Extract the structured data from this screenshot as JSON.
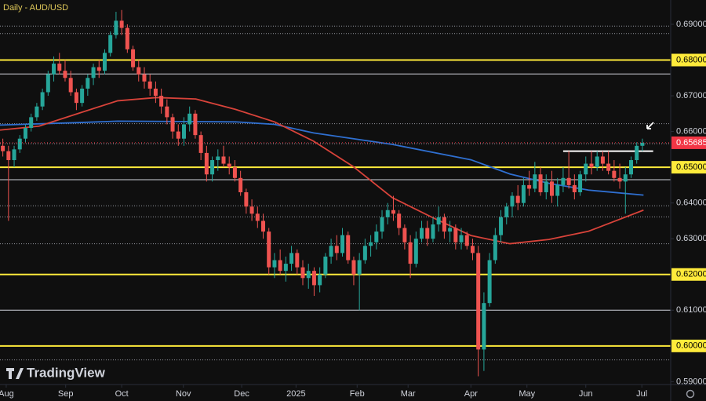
{
  "chart_data": {
    "type": "candlestick",
    "title": "Daily - AUD/USD",
    "logo": "TradingView",
    "xlim": [
      0,
      118.5
    ],
    "xticks": [
      {
        "value": 1.1,
        "label": "Aug"
      },
      {
        "value": 11.6,
        "label": "Sep"
      },
      {
        "value": 21.5,
        "label": "Oct"
      },
      {
        "value": 32.4,
        "label": "Nov"
      },
      {
        "value": 42.7,
        "label": "Dec"
      },
      {
        "value": 52.3,
        "label": "2025"
      },
      {
        "value": 63.1,
        "label": "Feb"
      },
      {
        "value": 72.1,
        "label": "Mar"
      },
      {
        "value": 83.2,
        "label": "Apr"
      },
      {
        "value": 93.1,
        "label": "May"
      },
      {
        "value": 103.5,
        "label": "Jun"
      },
      {
        "value": 113.4,
        "label": "Jul"
      }
    ],
    "ylim": [
      0.5892,
      0.6968
    ],
    "yticks": [
      {
        "value": 0.59,
        "label": "0.59000"
      },
      {
        "value": 0.6,
        "label": "0.60000"
      },
      {
        "value": 0.61,
        "label": "0.61000"
      },
      {
        "value": 0.62,
        "label": "0.62000"
      },
      {
        "value": 0.63,
        "label": "0.63000"
      },
      {
        "value": 0.64,
        "label": "0.64000"
      },
      {
        "value": 0.65,
        "label": "0.65000"
      },
      {
        "value": 0.66,
        "label": "0.66000"
      },
      {
        "value": 0.67,
        "label": "0.67000"
      },
      {
        "value": 0.68,
        "label": "0.68000"
      },
      {
        "value": 0.69,
        "label": "0.69000"
      }
    ],
    "up_color": "#26a69a",
    "down_color": "#ef5350",
    "ohlc": [
      [
        0.656,
        0.658,
        0.653,
        0.6545
      ],
      [
        0.6545,
        0.656,
        0.635,
        0.652
      ],
      [
        0.652,
        0.656,
        0.65,
        0.655
      ],
      [
        0.655,
        0.659,
        0.654,
        0.658
      ],
      [
        0.658,
        0.662,
        0.657,
        0.661
      ],
      [
        0.661,
        0.665,
        0.66,
        0.664
      ],
      [
        0.664,
        0.668,
        0.663,
        0.667
      ],
      [
        0.667,
        0.672,
        0.666,
        0.671
      ],
      [
        0.671,
        0.677,
        0.67,
        0.676
      ],
      [
        0.676,
        0.681,
        0.674,
        0.679
      ],
      [
        0.679,
        0.682,
        0.676,
        0.677
      ],
      [
        0.677,
        0.68,
        0.674,
        0.675
      ],
      [
        0.675,
        0.677,
        0.67,
        0.671
      ],
      [
        0.671,
        0.672,
        0.666,
        0.668
      ],
      [
        0.668,
        0.673,
        0.667,
        0.672
      ],
      [
        0.672,
        0.676,
        0.67,
        0.675
      ],
      [
        0.675,
        0.679,
        0.673,
        0.678
      ],
      [
        0.678,
        0.68,
        0.675,
        0.677
      ],
      [
        0.677,
        0.683,
        0.676,
        0.682
      ],
      [
        0.682,
        0.688,
        0.681,
        0.687
      ],
      [
        0.687,
        0.6935,
        0.686,
        0.691
      ],
      [
        0.691,
        0.694,
        0.687,
        0.689
      ],
      [
        0.689,
        0.69,
        0.682,
        0.683
      ],
      [
        0.683,
        0.684,
        0.677,
        0.678
      ],
      [
        0.678,
        0.68,
        0.674,
        0.676
      ],
      [
        0.676,
        0.678,
        0.672,
        0.674
      ],
      [
        0.674,
        0.676,
        0.67,
        0.672
      ],
      [
        0.672,
        0.674,
        0.668,
        0.67
      ],
      [
        0.67,
        0.672,
        0.665,
        0.667
      ],
      [
        0.667,
        0.669,
        0.662,
        0.664
      ],
      [
        0.664,
        0.665,
        0.658,
        0.66
      ],
      [
        0.66,
        0.662,
        0.656,
        0.658
      ],
      [
        0.658,
        0.664,
        0.656,
        0.662
      ],
      [
        0.662,
        0.667,
        0.66,
        0.665
      ],
      [
        0.665,
        0.666,
        0.658,
        0.659
      ],
      [
        0.659,
        0.66,
        0.652,
        0.654
      ],
      [
        0.654,
        0.656,
        0.646,
        0.648
      ],
      [
        0.648,
        0.653,
        0.646,
        0.652
      ],
      [
        0.652,
        0.655,
        0.649,
        0.653
      ],
      [
        0.653,
        0.656,
        0.65,
        0.651
      ],
      [
        0.651,
        0.653,
        0.648,
        0.65
      ],
      [
        0.65,
        0.652,
        0.646,
        0.647
      ],
      [
        0.647,
        0.649,
        0.642,
        0.643
      ],
      [
        0.643,
        0.644,
        0.637,
        0.639
      ],
      [
        0.639,
        0.641,
        0.635,
        0.637
      ],
      [
        0.637,
        0.639,
        0.633,
        0.635
      ],
      [
        0.635,
        0.637,
        0.63,
        0.632
      ],
      [
        0.632,
        0.633,
        0.62,
        0.622
      ],
      [
        0.622,
        0.626,
        0.619,
        0.624
      ],
      [
        0.624,
        0.627,
        0.62,
        0.621
      ],
      [
        0.621,
        0.625,
        0.618,
        0.623
      ],
      [
        0.623,
        0.628,
        0.621,
        0.626
      ],
      [
        0.626,
        0.627,
        0.62,
        0.622
      ],
      [
        0.622,
        0.624,
        0.617,
        0.619
      ],
      [
        0.619,
        0.623,
        0.616,
        0.621
      ],
      [
        0.621,
        0.622,
        0.614,
        0.617
      ],
      [
        0.617,
        0.622,
        0.615,
        0.62
      ],
      [
        0.62,
        0.626,
        0.619,
        0.625
      ],
      [
        0.625,
        0.63,
        0.623,
        0.628
      ],
      [
        0.628,
        0.631,
        0.624,
        0.626
      ],
      [
        0.626,
        0.633,
        0.625,
        0.631
      ],
      [
        0.631,
        0.632,
        0.623,
        0.624
      ],
      [
        0.624,
        0.625,
        0.617,
        0.62
      ],
      [
        0.62,
        0.626,
        0.61,
        0.624
      ],
      [
        0.624,
        0.63,
        0.623,
        0.628
      ],
      [
        0.628,
        0.631,
        0.625,
        0.629
      ],
      [
        0.629,
        0.634,
        0.627,
        0.632
      ],
      [
        0.632,
        0.638,
        0.63,
        0.636
      ],
      [
        0.636,
        0.64,
        0.634,
        0.638
      ],
      [
        0.638,
        0.642,
        0.635,
        0.637
      ],
      [
        0.637,
        0.638,
        0.631,
        0.633
      ],
      [
        0.633,
        0.634,
        0.627,
        0.629
      ],
      [
        0.629,
        0.631,
        0.619,
        0.623
      ],
      [
        0.623,
        0.632,
        0.622,
        0.63
      ],
      [
        0.63,
        0.635,
        0.629,
        0.633
      ],
      [
        0.633,
        0.635,
        0.628,
        0.63
      ],
      [
        0.63,
        0.636,
        0.629,
        0.634
      ],
      [
        0.634,
        0.639,
        0.632,
        0.636
      ],
      [
        0.636,
        0.637,
        0.63,
        0.632
      ],
      [
        0.632,
        0.635,
        0.629,
        0.633
      ],
      [
        0.633,
        0.634,
        0.627,
        0.629
      ],
      [
        0.629,
        0.633,
        0.627,
        0.631
      ],
      [
        0.631,
        0.632,
        0.627,
        0.628
      ],
      [
        0.628,
        0.63,
        0.624,
        0.626
      ],
      [
        0.626,
        0.628,
        0.5915,
        0.599
      ],
      [
        0.599,
        0.615,
        0.593,
        0.612
      ],
      [
        0.612,
        0.626,
        0.611,
        0.624
      ],
      [
        0.624,
        0.633,
        0.623,
        0.631
      ],
      [
        0.631,
        0.638,
        0.629,
        0.636
      ],
      [
        0.636,
        0.64,
        0.634,
        0.639
      ],
      [
        0.639,
        0.643,
        0.636,
        0.642
      ],
      [
        0.642,
        0.645,
        0.638,
        0.64
      ],
      [
        0.64,
        0.647,
        0.639,
        0.645
      ],
      [
        0.645,
        0.649,
        0.642,
        0.644
      ],
      [
        0.644,
        0.6515,
        0.643,
        0.648
      ],
      [
        0.648,
        0.65,
        0.642,
        0.643
      ],
      [
        0.643,
        0.648,
        0.641,
        0.646
      ],
      [
        0.646,
        0.649,
        0.64,
        0.642
      ],
      [
        0.642,
        0.647,
        0.639,
        0.645
      ],
      [
        0.645,
        0.65,
        0.643,
        0.647
      ],
      [
        0.647,
        0.6545,
        0.644,
        0.645
      ],
      [
        0.645,
        0.648,
        0.641,
        0.643
      ],
      [
        0.643,
        0.649,
        0.642,
        0.648
      ],
      [
        0.648,
        0.653,
        0.646,
        0.651
      ],
      [
        0.651,
        0.6545,
        0.648,
        0.65
      ],
      [
        0.65,
        0.6545,
        0.649,
        0.653
      ],
      [
        0.653,
        0.6545,
        0.649,
        0.651
      ],
      [
        0.651,
        0.6545,
        0.648,
        0.649
      ],
      [
        0.649,
        0.652,
        0.646,
        0.647
      ],
      [
        0.647,
        0.651,
        0.644,
        0.646
      ],
      [
        0.646,
        0.65,
        0.637,
        0.648
      ],
      [
        0.648,
        0.653,
        0.647,
        0.652
      ],
      [
        0.652,
        0.657,
        0.651,
        0.656
      ],
      [
        0.656,
        0.658,
        0.6545,
        0.65685
      ]
    ],
    "last_price": 0.65685,
    "last_price_color": "#f23645",
    "lines": [
      {
        "color": "#2f6fd0",
        "x": [
          0,
          13.9,
          20.8,
          41.6,
          48.5,
          55.4,
          69.3,
          83.2,
          90.1,
          97,
          104,
          113.7
        ],
        "values": [
          0.6618,
          0.6625,
          0.6629,
          0.6627,
          0.662,
          0.6596,
          0.6564,
          0.6521,
          0.6481,
          0.6455,
          0.6436,
          0.6422
        ]
      },
      {
        "color": "#d8433a",
        "x": [
          0,
          6.9,
          13.9,
          20.8,
          27.7,
          34.6,
          41.6,
          48.5,
          55.4,
          62.4,
          69.3,
          76.2,
          83.2,
          90.1,
          97,
          104,
          113.7
        ],
        "values": [
          0.6604,
          0.6615,
          0.6651,
          0.6686,
          0.6695,
          0.6691,
          0.6662,
          0.6627,
          0.6573,
          0.6502,
          0.6415,
          0.6361,
          0.6309,
          0.6286,
          0.6298,
          0.6321,
          0.638
        ]
      }
    ],
    "levels": [
      {
        "value": 0.68,
        "color": "#ffeb3b",
        "style": "solid"
      },
      {
        "value": 0.65,
        "color": "#ffeb3b",
        "style": "solid"
      },
      {
        "value": 0.62,
        "color": "#ffeb3b",
        "style": "solid"
      },
      {
        "value": 0.6,
        "color": "#ffeb3b",
        "style": "solid"
      },
      {
        "value": 0.6761,
        "color": "#d1d4dc",
        "style": "solid"
      },
      {
        "value": 0.6465,
        "color": "#d1d4dc",
        "style": "solid"
      },
      {
        "value": 0.61,
        "color": "#d1d4dc",
        "style": "solid"
      },
      {
        "value": 0.6895,
        "color": "#9598a1",
        "style": "dotted"
      },
      {
        "value": 0.6874,
        "color": "#9598a1",
        "style": "dotted"
      },
      {
        "value": 0.6622,
        "color": "#9598a1",
        "style": "dotted"
      },
      {
        "value": 0.6566,
        "color": "#9598a1",
        "style": "dotted"
      },
      {
        "value": 0.6392,
        "color": "#9598a1",
        "style": "dotted"
      },
      {
        "value": 0.6361,
        "color": "#9598a1",
        "style": "dotted"
      },
      {
        "value": 0.6286,
        "color": "#9598a1",
        "style": "dotted"
      },
      {
        "value": 0.5961,
        "color": "#9598a1",
        "style": "dotted"
      }
    ],
    "segment": {
      "value": 0.6545,
      "x": [
        99.5,
        115.4
      ],
      "color": "#ffffff"
    }
  }
}
